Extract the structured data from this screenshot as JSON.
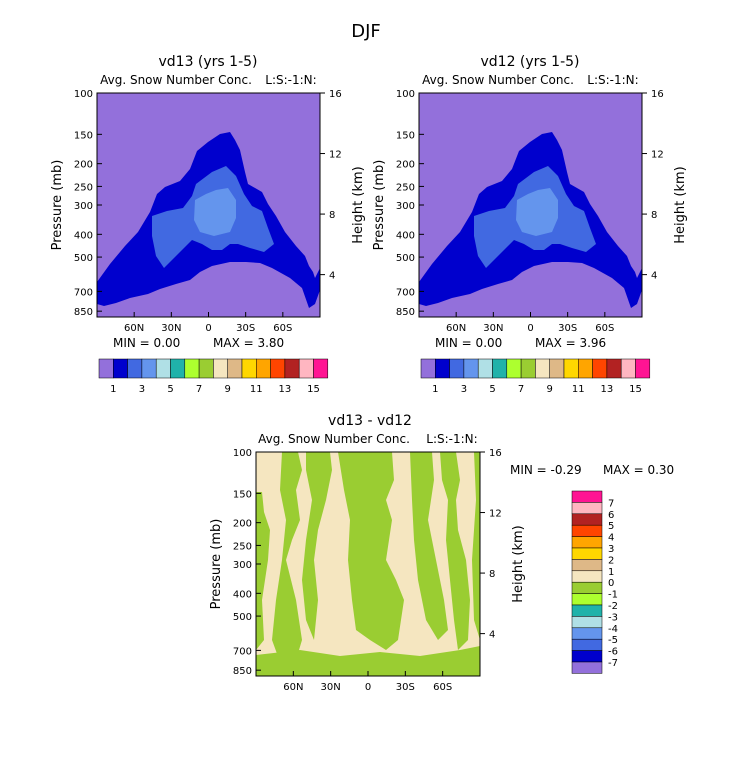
{
  "page_title": "DJF",
  "legend_levels": {
    "panel_colors": [
      "#9370DB",
      "#0000CD",
      "#4169E1",
      "#6495ED",
      "#B0E0E6",
      "#20B2AA",
      "#ADFF2F",
      "#9ACD32",
      "#F5E6C0",
      "#DEB887",
      "#FFD700",
      "#FFA500",
      "#FF4500",
      "#B22222",
      "#FFB6C1",
      "#FF1493"
    ],
    "panel_labels": [
      "1",
      "3",
      "5",
      "7",
      "9",
      "11",
      "13",
      "15"
    ],
    "diff_colors": [
      "#9370DB",
      "#0000CD",
      "#4169E1",
      "#6495ED",
      "#B0E0E6",
      "#20B2AA",
      "#ADFF2F",
      "#9ACD32",
      "#F5E6C0",
      "#DEB887",
      "#FFD700",
      "#FFA500",
      "#FF4500",
      "#B22222",
      "#FFB6C1",
      "#FF1493"
    ],
    "diff_labels": [
      "-7",
      "-6",
      "-5",
      "-4",
      "-3",
      "-2",
      "-1",
      "0",
      "1",
      "2",
      "3",
      "4",
      "5",
      "6",
      "7"
    ]
  },
  "chart_data": [
    {
      "type": "heatmap",
      "title": "vd13 (yrs 1-5)",
      "subtitle": "Avg. Snow Number Conc.",
      "units_label": "L:S:-1:N:",
      "ylabel": "Pressure (mb)",
      "ylabel_right": "Height (km)",
      "y_ticks": [
        "100",
        "150",
        "200",
        "250",
        "300",
        "400",
        "500",
        "700",
        "850"
      ],
      "y_right_ticks": [
        "16",
        "12",
        "8",
        "4"
      ],
      "x_ticks": [
        "60N",
        "30N",
        "0",
        "30S",
        "60S"
      ],
      "min_text": "MIN =    0.00",
      "max_text": "MAX =    3.80",
      "min": 0.0,
      "max": 3.8
    },
    {
      "type": "heatmap",
      "title": "vd12 (yrs 1-5)",
      "subtitle": "Avg. Snow Number Conc.",
      "units_label": "L:S:-1:N:",
      "ylabel": "Pressure (mb)",
      "ylabel_right": "Height (km)",
      "y_ticks": [
        "100",
        "150",
        "200",
        "250",
        "300",
        "400",
        "500",
        "700",
        "850"
      ],
      "y_right_ticks": [
        "16",
        "12",
        "8",
        "4"
      ],
      "x_ticks": [
        "60N",
        "30N",
        "0",
        "30S",
        "60S"
      ],
      "min_text": "MIN =    0.00",
      "max_text": "MAX =    3.96",
      "min": 0.0,
      "max": 3.96
    },
    {
      "type": "heatmap",
      "title": "vd13 - vd12",
      "subtitle": "Avg. Snow Number Conc.",
      "units_label": "L:S:-1:N:",
      "ylabel": "Pressure (mb)",
      "ylabel_right": "Height (km)",
      "y_ticks": [
        "100",
        "150",
        "200",
        "250",
        "300",
        "400",
        "500",
        "700",
        "850"
      ],
      "y_right_ticks": [
        "16",
        "12",
        "8",
        "4"
      ],
      "x_ticks": [
        "60N",
        "30N",
        "0",
        "30S",
        "60S"
      ],
      "min_text": "MIN =   -0.29",
      "max_text": "MAX =    0.30",
      "min": -0.29,
      "max": 0.3
    }
  ]
}
